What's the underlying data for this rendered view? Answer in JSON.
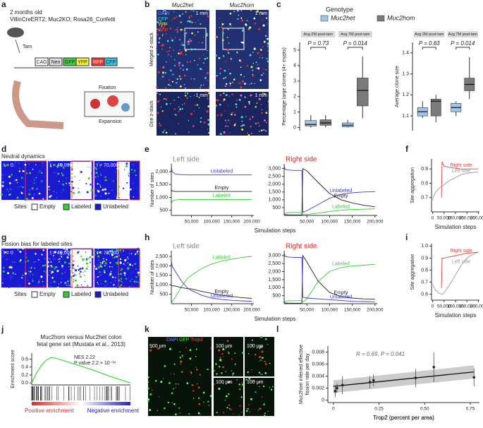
{
  "figure": {
    "panel_labels": [
      "a",
      "b",
      "c",
      "d",
      "e",
      "f",
      "g",
      "h",
      "i",
      "j",
      "k",
      "l"
    ],
    "a": {
      "line1": "2 months old",
      "line2": "VillinCreERT2; Muc2KO; Rosa26_Confetti",
      "tam": "Tam",
      "construct": [
        "CAG",
        "Neo",
        "GFP",
        "YFP",
        "RFP",
        "CFP"
      ],
      "fixation": "Fixation",
      "expansion": "Expansion"
    },
    "b": {
      "het": "Muc2het",
      "hom": "Muc2hom",
      "scale": "1 mm",
      "row1": "Merged z-stack",
      "row2": "One z-stack",
      "channels": [
        "DAPI",
        "CFP",
        "YFP",
        "RFP"
      ]
    },
    "d": {
      "title": "Neutral dynamics",
      "times": [
        "t = 0",
        "t = 40,000",
        "t = 70,000"
      ]
    },
    "g": {
      "title": "Fission bias for labeled sites",
      "times": [
        "t = 0",
        "t = 40,000",
        "t = 70,000"
      ]
    },
    "sites_legend": {
      "title": "Sites",
      "items": [
        "Empty",
        "Labeled",
        "Unlabeled"
      ]
    },
    "k": {
      "channels": [
        "DAPI",
        "GFP",
        "Trop2"
      ],
      "scale1": "500 µm",
      "scale2": "100 µm"
    }
  },
  "chart_data": [
    {
      "type": "box",
      "legend_title": "Genotype",
      "ylabel": "Percentage large clones (4+ crypts)",
      "facets": [
        "Avg 2M post-tam",
        "Avg 7M post-tam"
      ],
      "annotations": [
        "P = 0.73",
        "P = 0.014"
      ],
      "ylim": [
        -0.2,
        5.5
      ],
      "yticks": [
        0,
        1,
        2,
        3,
        4,
        5
      ],
      "series": [
        {
          "name": "Muc2het",
          "color": "#9ec5ee",
          "stats": [
            [
              0,
              0.1,
              0.2,
              0.45,
              0.8
            ],
            [
              0,
              0.05,
              0.15,
              0.3,
              0.5
            ]
          ]
        },
        {
          "name": "Muc2hom",
          "color": "#7a7a7a",
          "stats": [
            [
              0,
              0.15,
              0.3,
              0.5,
              0.8
            ],
            [
              0.6,
              1.4,
              2.4,
              3.2,
              4.6
            ]
          ]
        }
      ]
    },
    {
      "type": "box",
      "ylabel": "Average clone size",
      "facets": [
        "Avg 2M post-tam",
        "Avg 7M post-tam"
      ],
      "annotations": [
        "P = 0.83",
        "P = 0.014"
      ],
      "ylim": [
        1.03,
        1.45
      ],
      "yticks": [
        1.1,
        1.2,
        1.3,
        1.4
      ],
      "series": [
        {
          "name": "Muc2het",
          "color": "#9ec5ee",
          "stats": [
            [
              1.09,
              1.1,
              1.12,
              1.14,
              1.17
            ],
            [
              1.1,
              1.12,
              1.14,
              1.16,
              1.17
            ]
          ]
        },
        {
          "name": "Muc2hom",
          "color": "#7a7a7a",
          "stats": [
            [
              1.07,
              1.1,
              1.17,
              1.18,
              1.2
            ],
            [
              1.18,
              1.22,
              1.25,
              1.28,
              1.38
            ]
          ]
        }
      ]
    },
    {
      "type": "line",
      "title": "Left side",
      "title_color": "#888888",
      "ylabel": "Number of sites",
      "x": [
        0,
        2000,
        10000,
        25000,
        39000,
        41000,
        50000,
        75000,
        100000,
        125000,
        150000,
        175000,
        200000
      ],
      "xlim": [
        0,
        205000
      ],
      "xticks": [
        {
          "value": 50000,
          "label": "50,000"
        },
        {
          "value": 100000,
          "label": "100,000"
        },
        {
          "value": 150000,
          "label": "150,000"
        },
        {
          "value": 200000,
          "label": "200,000"
        }
      ],
      "ylim": [
        300,
        2300
      ],
      "yticks": [
        500,
        {
          "value": 1000,
          "label": "1,000"
        },
        {
          "value": 1500,
          "label": "1,500"
        },
        {
          "value": 2000,
          "label": "2,000"
        }
      ],
      "series": [
        {
          "name": "Unlabeled",
          "color": "#3b3bd6",
          "values": [
            2200,
            2000,
            1900,
            1880,
            1870,
            1870,
            1870,
            1870,
            1870,
            1870,
            1870,
            1870,
            1870
          ]
        },
        {
          "name": "Empty",
          "color": "#222222",
          "values": [
            1300,
            1250,
            1230,
            1230,
            1230,
            1230,
            1230,
            1230,
            1230,
            1230,
            1230,
            1230,
            1230
          ]
        },
        {
          "name": "Labeled",
          "color": "#33cc33",
          "values": [
            700,
            850,
            900,
            920,
            920,
            920,
            920,
            920,
            920,
            920,
            920,
            920,
            920
          ]
        }
      ]
    },
    {
      "type": "line",
      "title": "Right side",
      "title_color": "#e02020",
      "xlabel": "Simulation steps",
      "x": [
        0,
        2000,
        10000,
        25000,
        39000,
        41000,
        50000,
        75000,
        100000,
        125000,
        150000,
        175000,
        200000
      ],
      "xlim": [
        0,
        205000
      ],
      "xticks": [
        {
          "value": 50000,
          "label": "50,000"
        },
        {
          "value": 100000,
          "label": "100,000"
        },
        {
          "value": 150000,
          "label": "150,000"
        },
        {
          "value": 200000,
          "label": "200,000"
        }
      ],
      "ylim": [
        0,
        3300
      ],
      "yticks": [
        500,
        {
          "value": 1000,
          "label": "1,000"
        },
        {
          "value": 1500,
          "label": "1,500"
        },
        {
          "value": 2000,
          "label": "2,000"
        },
        {
          "value": 2500,
          "label": "2,500"
        },
        {
          "value": 3000,
          "label": "3,000"
        }
      ],
      "series": [
        {
          "name": "Unlabeled",
          "color": "#3b3bd6",
          "values": [
            3200,
            2950,
            2900,
            2880,
            2880,
            200,
            300,
            700,
            1100,
            1350,
            1450,
            1500,
            1520
          ]
        },
        {
          "name": "Empty",
          "color": "#222222",
          "values": [
            100,
            50,
            30,
            30,
            30,
            3000,
            2850,
            2100,
            1400,
            1000,
            800,
            650,
            550
          ]
        },
        {
          "name": "Labeled",
          "color": "#33cc33",
          "values": [
            100,
            150,
            180,
            190,
            190,
            50,
            60,
            150,
            250,
            330,
            380,
            400,
            420
          ]
        }
      ]
    },
    {
      "type": "line",
      "ylabel": "Site aggregation",
      "xlabel": "Simulation steps",
      "x": [
        0,
        2000,
        10000,
        25000,
        39000,
        41000,
        50000,
        75000,
        100000,
        125000,
        150000,
        175000,
        200000
      ],
      "xlim": [
        -5000,
        205000
      ],
      "xticks": [
        0,
        {
          "value": 50000,
          "label": "50,000"
        },
        {
          "value": 100000,
          "label": "100,000"
        },
        {
          "value": 150000,
          "label": "150,000"
        },
        {
          "value": 200000,
          "label": "200,000"
        }
      ],
      "ylim": [
        0.6,
        0.97
      ],
      "yticks": [
        0.7,
        0.8,
        0.9
      ],
      "series": [
        {
          "name": "Right side",
          "color": "#e04040",
          "values": [
            null,
            null,
            null,
            null,
            0.7,
            0.95,
            0.92,
            0.91,
            0.905,
            0.9,
            0.9,
            0.9,
            0.9
          ]
        },
        {
          "name": "Left side",
          "color": "#999999",
          "values": [
            0.68,
            0.7,
            0.73,
            0.76,
            0.78,
            0.78,
            0.79,
            0.82,
            0.84,
            0.86,
            0.87,
            0.875,
            0.88
          ]
        }
      ]
    },
    {
      "type": "line",
      "title": "Left side",
      "title_color": "#888888",
      "ylabel": "Number of sites",
      "x": [
        0,
        2000,
        10000,
        25000,
        39000,
        41000,
        50000,
        75000,
        100000,
        125000,
        150000,
        175000,
        200000
      ],
      "xlim": [
        0,
        205000
      ],
      "xticks": [
        {
          "value": 50000,
          "label": "50,000"
        },
        {
          "value": 100000,
          "label": "100,000"
        },
        {
          "value": 150000,
          "label": "150,000"
        },
        {
          "value": 200000,
          "label": "200,000"
        }
      ],
      "ylim": [
        0,
        2800
      ],
      "yticks": [
        500,
        {
          "value": 1000,
          "label": "1,000"
        },
        {
          "value": 1500,
          "label": "1,500"
        },
        {
          "value": 2000,
          "label": "2,000"
        },
        {
          "value": 2500,
          "label": "2,500"
        }
      ],
      "series": [
        {
          "name": "Labeled",
          "color": "#33cc33",
          "values": [
            0,
            100,
            350,
            900,
            1300,
            1350,
            1500,
            1850,
            2100,
            2250,
            2350,
            2450,
            2500
          ]
        },
        {
          "name": "Empty",
          "color": "#222222",
          "values": [
            1000,
            950,
            930,
            850,
            800,
            790,
            780,
            650,
            550,
            450,
            380,
            320,
            280
          ]
        },
        {
          "name": "Unlabeled",
          "color": "#3b3bd6",
          "values": [
            2300,
            2000,
            1700,
            1200,
            850,
            820,
            700,
            450,
            300,
            220,
            180,
            150,
            130
          ]
        }
      ]
    },
    {
      "type": "line",
      "title": "Right side",
      "title_color": "#e02020",
      "xlabel": "Simulation steps",
      "x": [
        0,
        2000,
        10000,
        25000,
        39000,
        41000,
        50000,
        75000,
        100000,
        125000,
        150000,
        175000,
        200000
      ],
      "xlim": [
        0,
        205000
      ],
      "xticks": [
        {
          "value": 50000,
          "label": "50,000"
        },
        {
          "value": 100000,
          "label": "100,000"
        },
        {
          "value": 150000,
          "label": "150,000"
        },
        {
          "value": 200000,
          "label": "200,000"
        }
      ],
      "ylim": [
        0,
        3300
      ],
      "yticks": [
        500,
        {
          "value": 1000,
          "label": "1,000"
        },
        {
          "value": 1500,
          "label": "1,500"
        },
        {
          "value": 2000,
          "label": "2,000"
        },
        {
          "value": 2500,
          "label": "2,500"
        },
        {
          "value": 3000,
          "label": "3,000"
        }
      ],
      "series": [
        {
          "name": "Labeled",
          "color": "#33cc33",
          "values": [
            100,
            150,
            180,
            190,
            190,
            100,
            300,
            1400,
            2000,
            2250,
            2350,
            2400,
            2450
          ]
        },
        {
          "name": "Empty",
          "color": "#222222",
          "values": [
            100,
            50,
            30,
            30,
            30,
            3000,
            2600,
            1400,
            700,
            450,
            350,
            300,
            280
          ]
        },
        {
          "name": "Unlabeled",
          "color": "#3b3bd6",
          "values": [
            3200,
            2950,
            2900,
            2880,
            2880,
            400,
            350,
            300,
            250,
            200,
            150,
            130,
            120
          ]
        }
      ]
    },
    {
      "type": "line",
      "ylabel": "Site aggregation",
      "xlabel": "Simulation steps",
      "x": [
        0,
        2000,
        10000,
        25000,
        39000,
        41000,
        50000,
        75000,
        100000,
        125000,
        150000,
        175000,
        200000
      ],
      "xlim": [
        -5000,
        205000
      ],
      "xticks": [
        0,
        {
          "value": 50000,
          "label": "50,000"
        },
        {
          "value": 100000,
          "label": "100,000"
        },
        {
          "value": 150000,
          "label": "150,000"
        },
        {
          "value": 200000,
          "label": "200,000"
        }
      ],
      "ylim": [
        0.55,
        1.02
      ],
      "yticks": [
        0.6,
        0.7,
        0.8,
        0.9,
        {
          "value": 1,
          "label": "1.0"
        }
      ],
      "series": [
        {
          "name": "Right side",
          "color": "#e04040",
          "values": [
            null,
            null,
            null,
            null,
            0.65,
            0.9,
            0.9,
            0.91,
            0.92,
            0.93,
            0.94,
            0.945,
            0.95
          ]
        },
        {
          "name": "Left side",
          "color": "#999999",
          "values": [
            0.68,
            0.67,
            0.64,
            0.61,
            0.6,
            0.6,
            0.61,
            0.68,
            0.76,
            0.84,
            0.9,
            0.93,
            0.95
          ]
        }
      ]
    },
    {
      "type": "gsea",
      "title": "Muc2hom versus Muc2het colon",
      "subtitle": "fetal gene set (Mustata et al., 2013)",
      "ylabel": "Enrichment score",
      "annotations": [
        "NES 2.22",
        "P value 2.2 × 10⁻¹⁶"
      ],
      "left_label": "Positive enrichment",
      "right_label": "Negative enrichment",
      "x": [
        0,
        5,
        10,
        15,
        20,
        25,
        30,
        40,
        50,
        60,
        70,
        80,
        90,
        100
      ],
      "xlim": [
        0,
        100
      ],
      "ylim": [
        -0.05,
        0.75
      ],
      "yticks": [
        {
          "value": 0,
          "label": "0.0"
        },
        0.2,
        0.4,
        0.6
      ],
      "series": [
        {
          "color": "#33dd33",
          "values": [
            0,
            0.25,
            0.45,
            0.58,
            0.64,
            0.62,
            0.58,
            0.5,
            0.42,
            0.34,
            0.25,
            0.16,
            0.08,
            0
          ]
        }
      ]
    },
    {
      "type": "scatter",
      "xlabel": "Trop2 (percent per area)",
      "ylabel": [
        "Muc2hom inferred effective",
        "fission rate per day"
      ],
      "annotation": "R = 0.69, P = 0.041",
      "xlim": [
        -0.03,
        0.8
      ],
      "xticks": [
        0,
        0.25,
        {
          "value": 0.5,
          "label": "0.50"
        },
        0.75
      ],
      "ylim": [
        -0.0004,
        0.009
      ],
      "yticks": [
        0,
        0.002,
        0.004,
        0.006,
        0.008
      ],
      "x": [
        0.01,
        0.02,
        0.05,
        0.2,
        0.22,
        0.45,
        0.55,
        0.77
      ],
      "values": [
        0.0015,
        0.002,
        0.0025,
        0.003,
        0.0033,
        0.0037,
        0.0055,
        0.0038
      ],
      "errors": [
        0.001,
        0.0008,
        0.0015,
        0.001,
        0.001,
        0.0015,
        0.0025,
        0.0015
      ],
      "fit_x": [
        0,
        0.77
      ],
      "fit_y": [
        0.0023,
        0.0047
      ],
      "ci_low": [
        0.0012,
        0.0036
      ],
      "ci_high": [
        0.0033,
        0.0058
      ],
      "color": "#222222"
    }
  ]
}
